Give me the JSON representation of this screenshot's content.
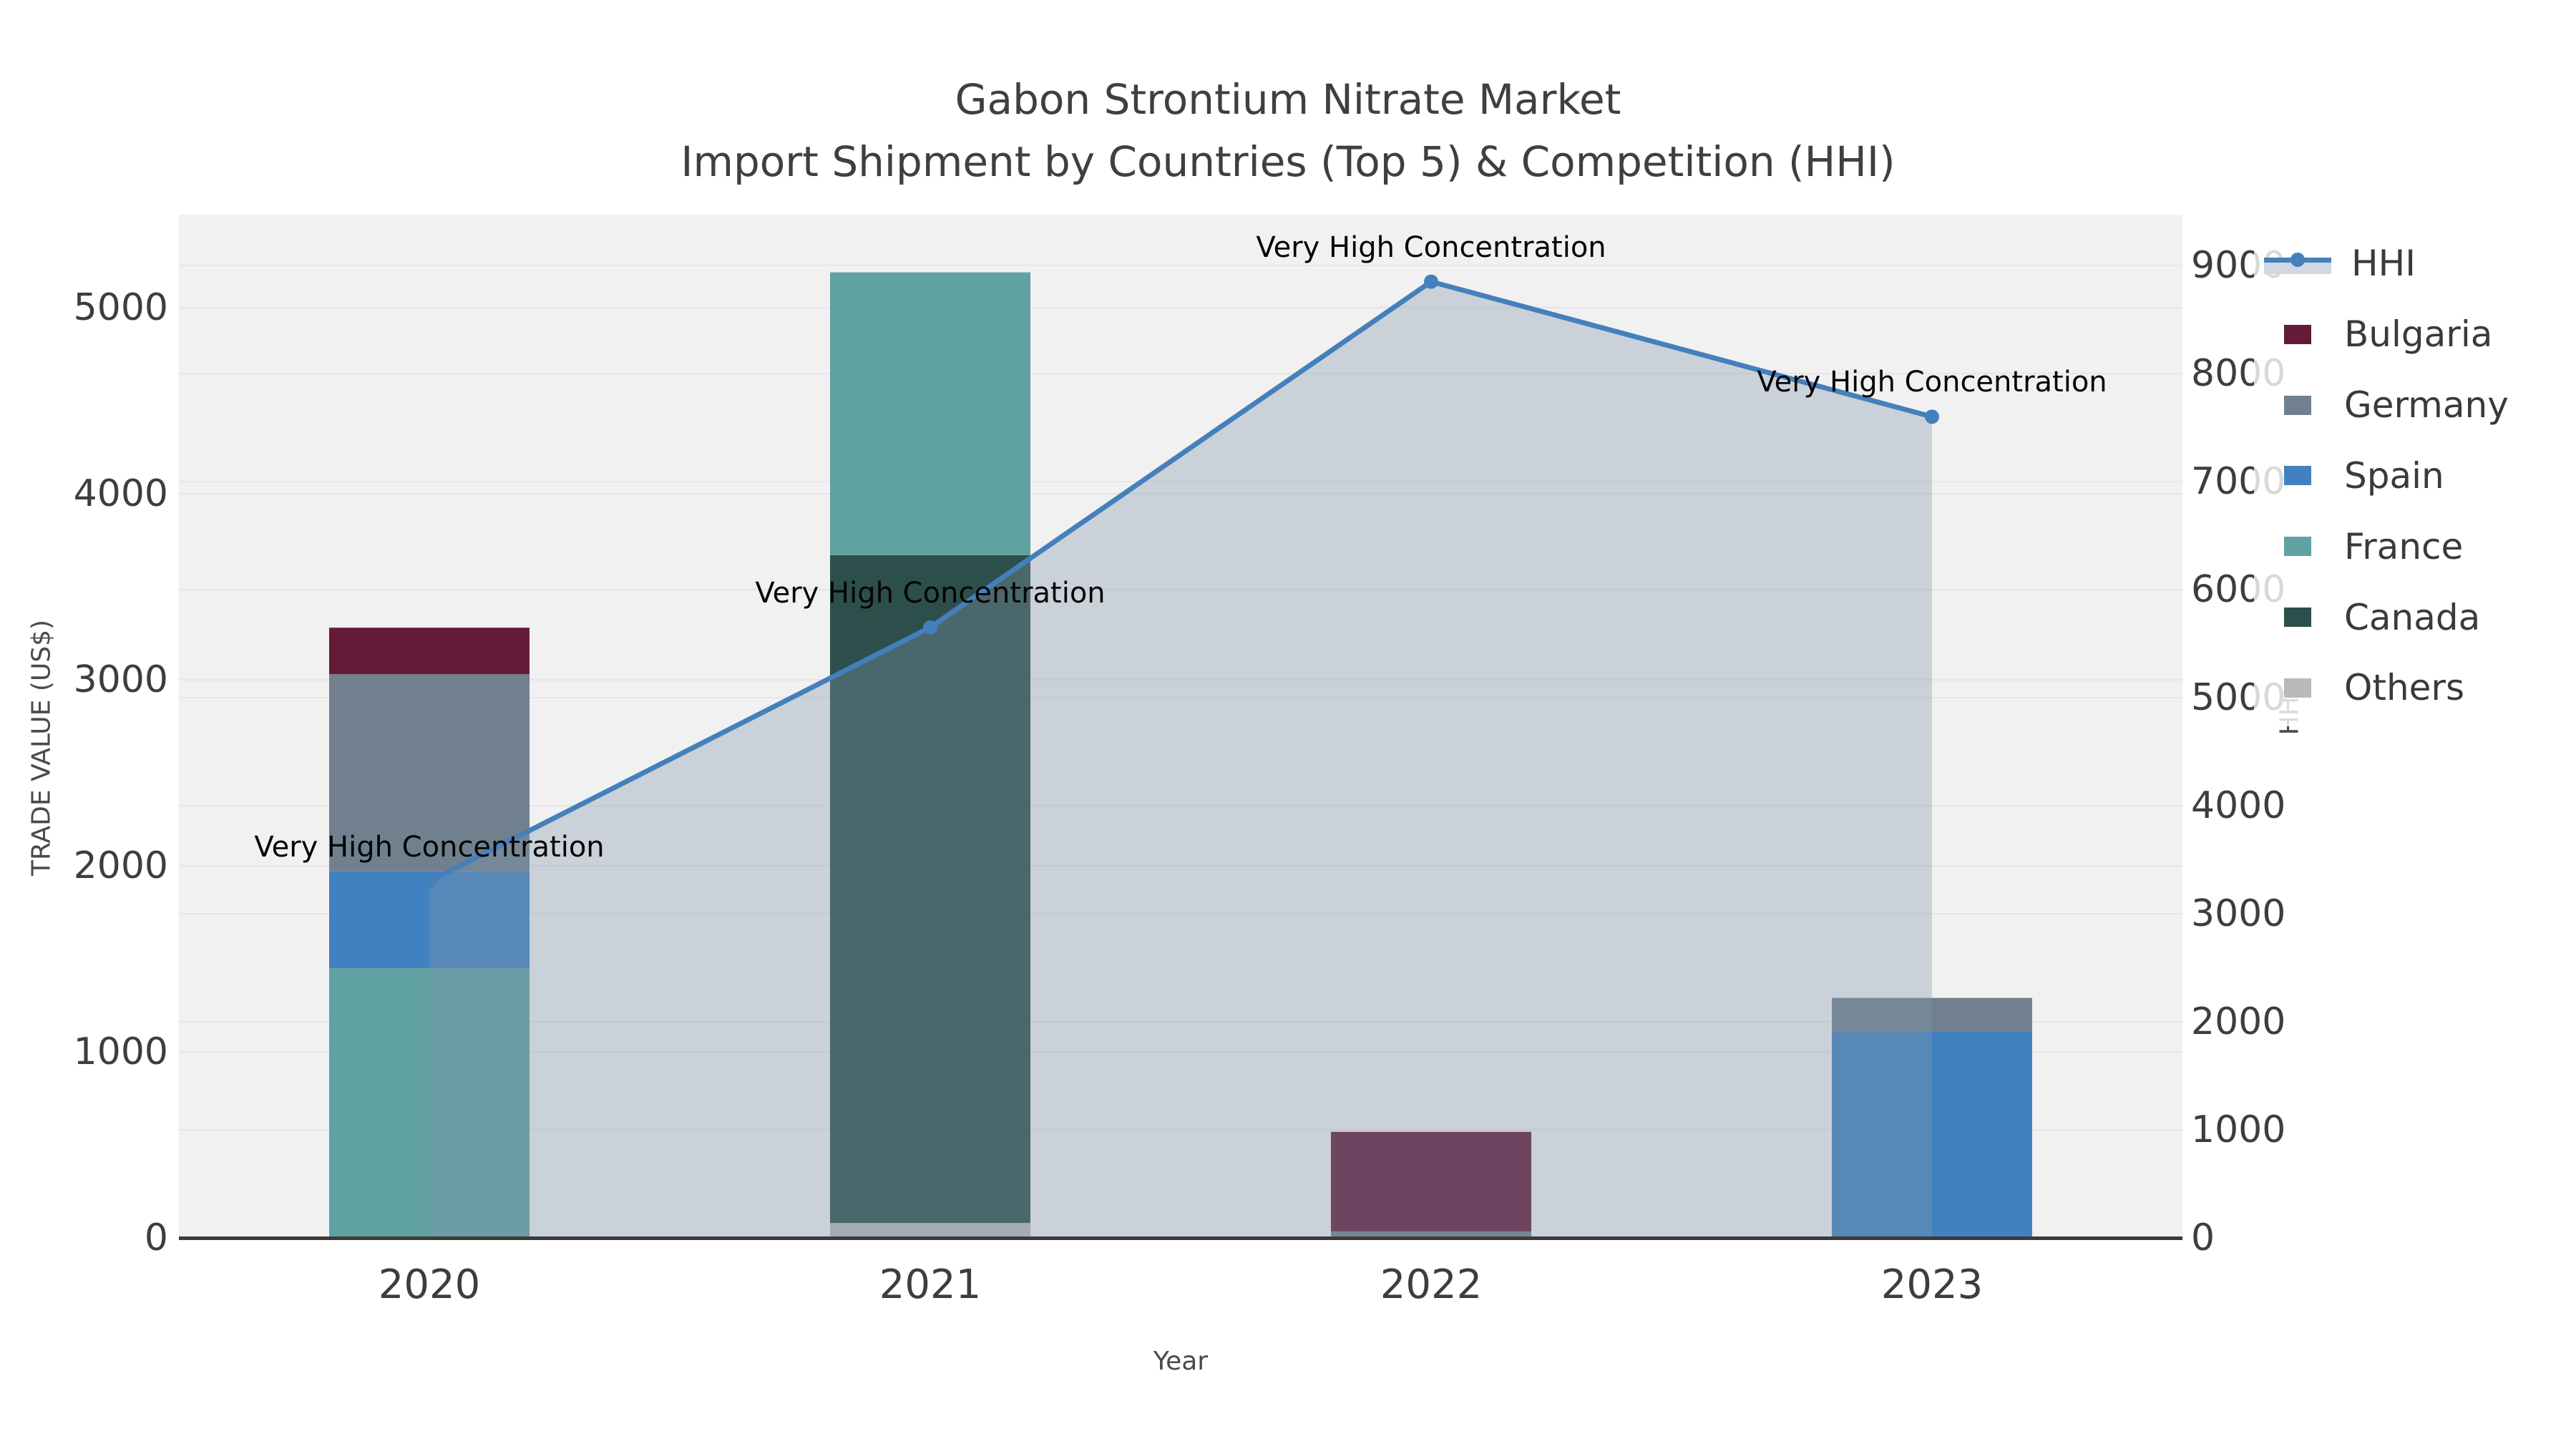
{
  "title": {
    "line1": "Gabon Strontium Nitrate Market",
    "line2": "Import Shipment by Countries (Top 5) & Competition (HHI)"
  },
  "axes": {
    "x_label": "Year",
    "y_left_label": "TRADE VALUE (US$)",
    "y_right_label": "HHI",
    "x_ticks": [
      "2020",
      "2021",
      "2022",
      "2023"
    ],
    "y_left_ticks": [
      0,
      1000,
      2000,
      3000,
      4000,
      5000
    ],
    "y_left_max": 5500,
    "y_right_ticks": [
      0,
      1000,
      2000,
      3000,
      4000,
      5000,
      6000,
      7000,
      8000,
      9000
    ],
    "y_right_max": 9470
  },
  "legend": {
    "items": [
      {
        "label": "HHI",
        "type": "line",
        "color": "#4480bb",
        "fill": "#d2d8e1"
      },
      {
        "label": "Bulgaria",
        "type": "patch",
        "color": "#641b3a"
      },
      {
        "label": "Germany",
        "type": "patch",
        "color": "#70808f"
      },
      {
        "label": "Spain",
        "type": "patch",
        "color": "#4181c1"
      },
      {
        "label": "France",
        "type": "patch",
        "color": "#60a1a1"
      },
      {
        "label": "Canada",
        "type": "patch",
        "color": "#2d4f4c"
      },
      {
        "label": "Others",
        "type": "patch",
        "color": "#b8b9bb"
      }
    ]
  },
  "chart_data": {
    "type": "bar",
    "subtype": "stacked-bar-with-line",
    "title": "Gabon Strontium Nitrate Market\nImport Shipment by Countries (Top 5) & Competition (HHI)",
    "xlabel": "Year",
    "ylabel": "TRADE VALUE (US$)",
    "ylabel_right": "HHI",
    "categories": [
      "2020",
      "2021",
      "2022",
      "2023"
    ],
    "ylim_left": [
      0,
      5500
    ],
    "ylim_right": [
      0,
      9470
    ],
    "grid": true,
    "legend_position": "outside upper right",
    "plot_bg": "#f1f1f2",
    "grid_color": "#e6e6e9",
    "spine_color": "#3b3b3b",
    "series": [
      {
        "name": "Bulgaria",
        "color": "#641b3a",
        "values": [
          250,
          0,
          535,
          0
        ]
      },
      {
        "name": "Germany",
        "color": "#70808f",
        "values": [
          1060,
          0,
          35,
          180
        ]
      },
      {
        "name": "Spain",
        "color": "#4181c1",
        "values": [
          520,
          0,
          0,
          1110
        ]
      },
      {
        "name": "France",
        "color": "#60a1a1",
        "values": [
          1450,
          1520,
          0,
          0
        ]
      },
      {
        "name": "Canada",
        "color": "#2d4f4c",
        "values": [
          0,
          3590,
          0,
          0
        ]
      },
      {
        "name": "Others",
        "color": "#b8b9bb",
        "values": [
          0,
          80,
          0,
          0
        ]
      }
    ],
    "stack_order_bottom_to_top": [
      "Others",
      "Canada",
      "France",
      "Spain",
      "Germany",
      "Bulgaria"
    ],
    "bar_totals": [
      3280,
      5190,
      570,
      1290
    ],
    "line_series": {
      "name": "HHI",
      "axis": "right",
      "color": "#4480bb",
      "area_fill": "rgba(130,148,170,0.35)",
      "values": [
        3300,
        5650,
        8850,
        7600
      ],
      "annotations": [
        "Very High Concentration",
        "Very High Concentration",
        "Very High Concentration",
        "Very High Concentration"
      ]
    }
  }
}
